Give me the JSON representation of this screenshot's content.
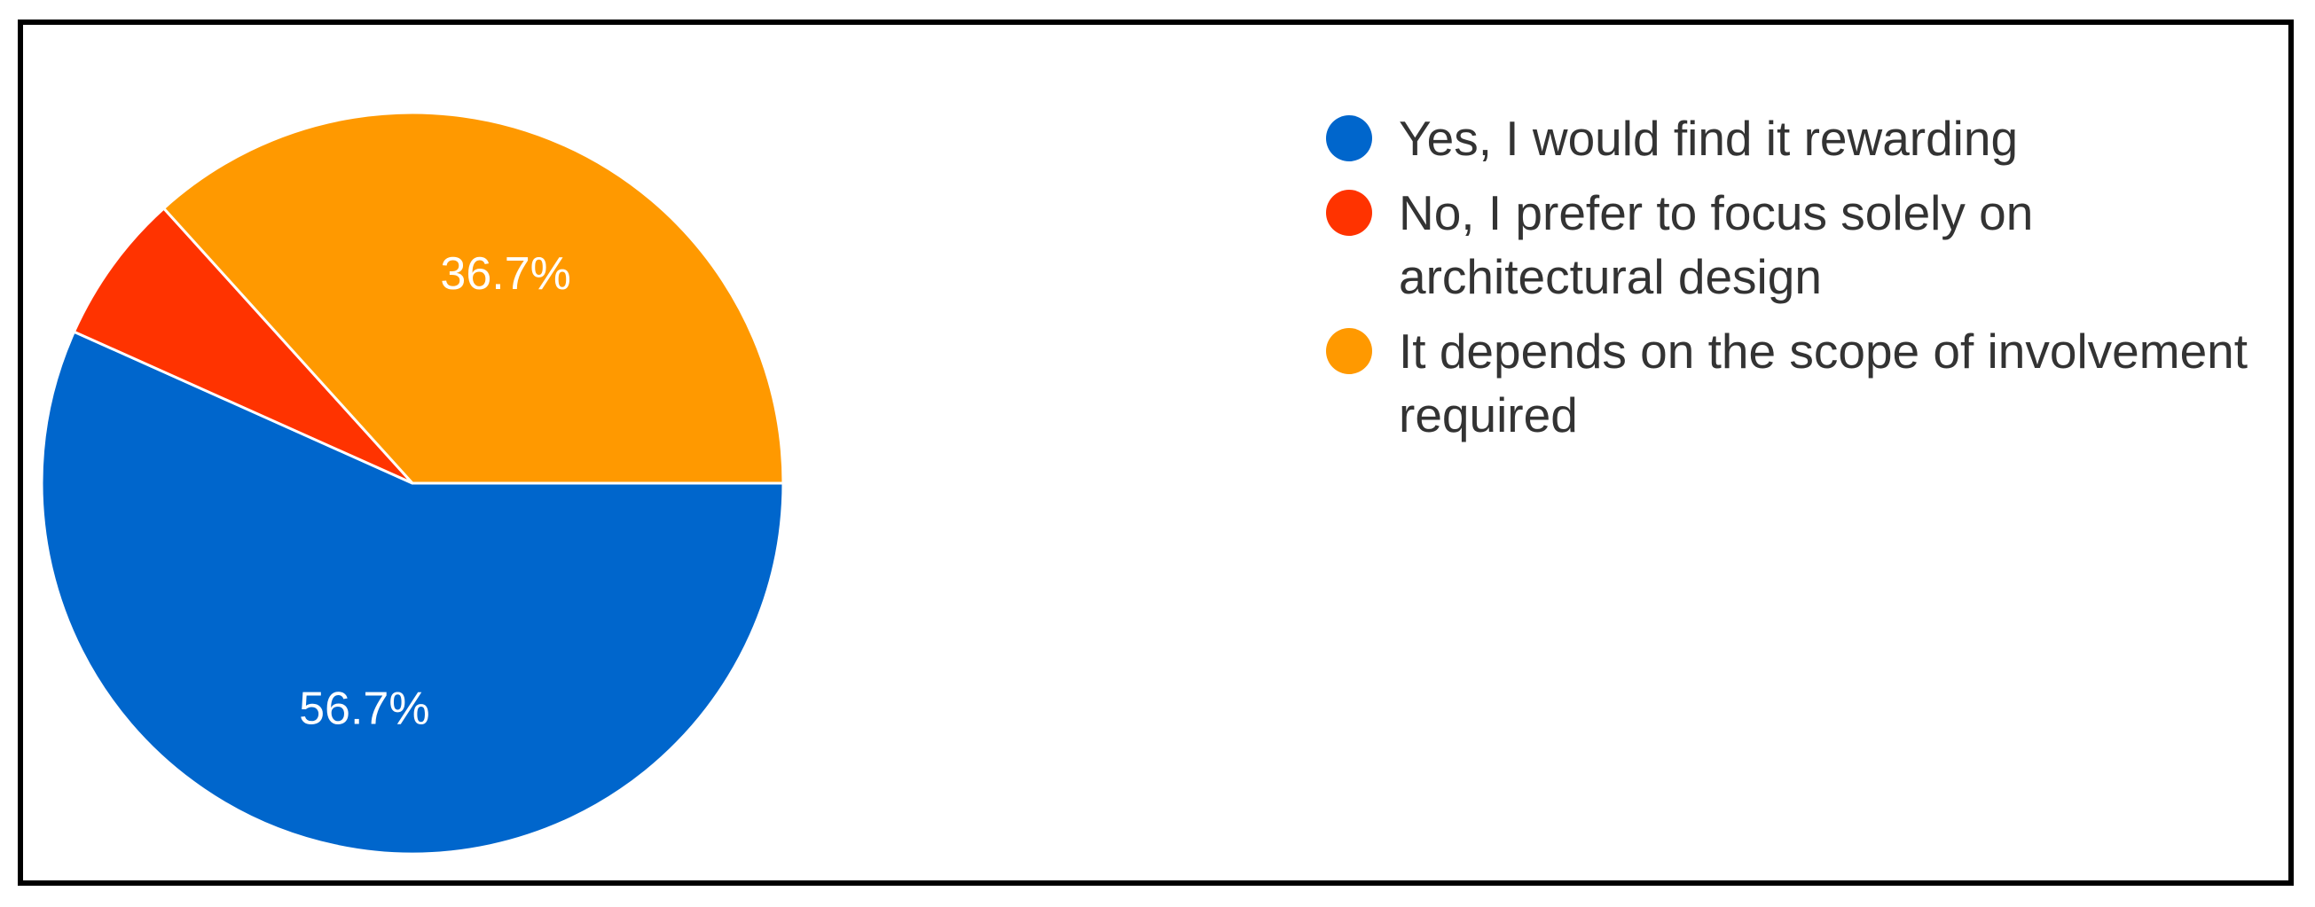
{
  "chart_data": {
    "type": "pie",
    "slices": [
      {
        "label": "Yes, I would find it rewarding",
        "value": 56.7,
        "color": "#0066CC",
        "display": "56.7%"
      },
      {
        "label": "No, I prefer to focus solely on architectural design",
        "value": 6.6,
        "color": "#FF3300",
        "display": ""
      },
      {
        "label": "It depends on the scope of involvement required",
        "value": 36.7,
        "color": "#FF9900",
        "display": "36.7%"
      }
    ],
    "legend_position": "right"
  },
  "legend": {
    "items": [
      {
        "label": "Yes, I would find it rewarding",
        "color": "#0066CC"
      },
      {
        "label": "No, I prefer to focus solely on architectural design",
        "color": "#FF3300"
      },
      {
        "label": "It depends on the scope of involvement required",
        "color": "#FF9900"
      }
    ]
  }
}
